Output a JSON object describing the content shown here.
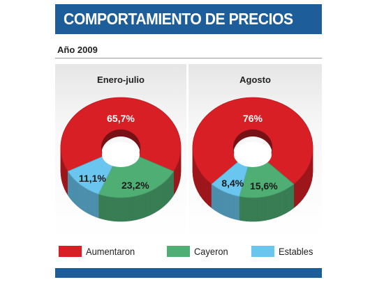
{
  "header": {
    "title": "COMPORTAMIENTO DE PRECIOS"
  },
  "subtitle": "Año 2009",
  "colors": {
    "increased": "#d81f26",
    "decreased": "#4fae74",
    "stable": "#6ac6ef",
    "header_blue": "#1d5e9a"
  },
  "legend": [
    {
      "label": "Aumentaron",
      "color": "#d81f26"
    },
    {
      "label": "Cayeron",
      "color": "#4fae74"
    },
    {
      "label": "Estables",
      "color": "#6ac6ef"
    }
  ],
  "chart_data": [
    {
      "type": "pie",
      "title": "Enero-julio",
      "categories": [
        "Aumentaron",
        "Cayeron",
        "Estables"
      ],
      "values": [
        65.7,
        23.2,
        11.1
      ],
      "labels": [
        "65,7%",
        "23,2%",
        "11,1%"
      ]
    },
    {
      "type": "pie",
      "title": "Agosto",
      "categories": [
        "Aumentaron",
        "Cayeron",
        "Estables"
      ],
      "values": [
        76,
        15.6,
        8.4
      ],
      "labels": [
        "76%",
        "15,6%",
        "8,4%"
      ]
    }
  ]
}
